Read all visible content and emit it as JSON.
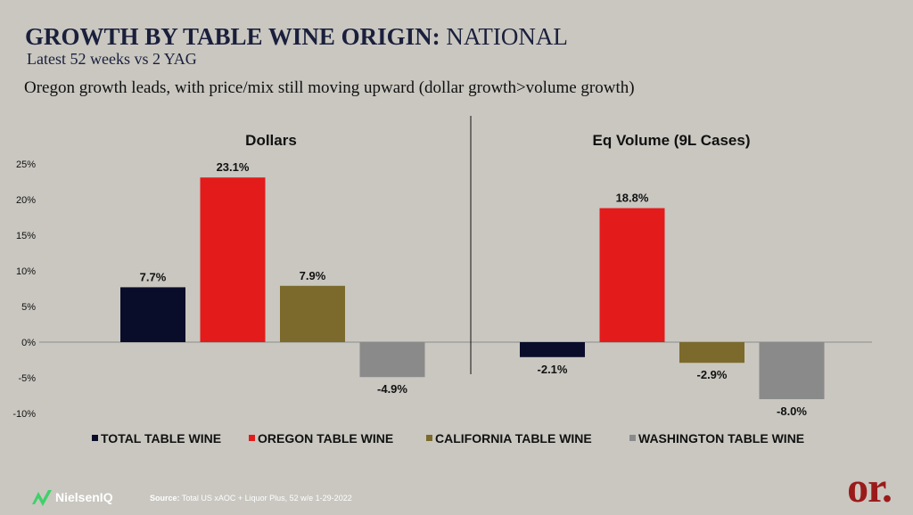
{
  "header": {
    "title_bold": "GROWTH BY TABLE WINE ORIGIN:",
    "title_rest": " NATIONAL",
    "subtitle": "Latest 52 weeks vs 2 YAG",
    "headline": "Oregon growth leads, with price/mix still moving upward (dollar growth>volume growth)"
  },
  "chart_data": [
    {
      "type": "bar",
      "title": "Dollars",
      "categories": [
        "TOTAL TABLE WINE",
        "OREGON TABLE WINE",
        "CALIFORNIA TABLE WINE",
        "WASHINGTON TABLE WINE"
      ],
      "values": [
        7.7,
        23.1,
        7.9,
        -4.9
      ],
      "data_labels": [
        "7.7%",
        "23.1%",
        "7.9%",
        "-4.9%"
      ],
      "ylim": [
        -10,
        25
      ],
      "yticks": [
        -10,
        -5,
        0,
        5,
        10,
        15,
        20,
        25
      ],
      "ytick_labels": [
        "-10%",
        "-5%",
        "0%",
        "5%",
        "10%",
        "15%",
        "20%",
        "25%"
      ],
      "colors": [
        "#0a0d2a",
        "#e31b1b",
        "#7c6a2c",
        "#8a8a8a"
      ]
    },
    {
      "type": "bar",
      "title": "Eq Volume (9L Cases)",
      "categories": [
        "TOTAL TABLE WINE",
        "OREGON TABLE WINE",
        "CALIFORNIA TABLE WINE",
        "WASHINGTON TABLE WINE"
      ],
      "values": [
        -2.1,
        18.8,
        -2.9,
        -8.0
      ],
      "data_labels": [
        "-2.1%",
        "18.8%",
        "-2.9%",
        "-8.0%"
      ],
      "ylim": [
        -10,
        25
      ],
      "colors": [
        "#0a0d2a",
        "#e31b1b",
        "#7c6a2c",
        "#8a8a8a"
      ]
    }
  ],
  "legend": {
    "placement": "bottom",
    "items": [
      {
        "label": "TOTAL TABLE WINE",
        "color": "#0a0d2a"
      },
      {
        "label": "OREGON TABLE WINE",
        "color": "#e31b1b"
      },
      {
        "label": "CALIFORNIA TABLE WINE",
        "color": "#7c6a2c"
      },
      {
        "label": "WASHINGTON TABLE WINE",
        "color": "#8a8a8a"
      }
    ]
  },
  "footer": {
    "source_label": "Source:",
    "source_text": " Total US xAOC + Liquor Plus, 52 w/e 1-29-2022",
    "nielsen_logo_text": "NielsenIQ",
    "or_logo_text": "or."
  }
}
